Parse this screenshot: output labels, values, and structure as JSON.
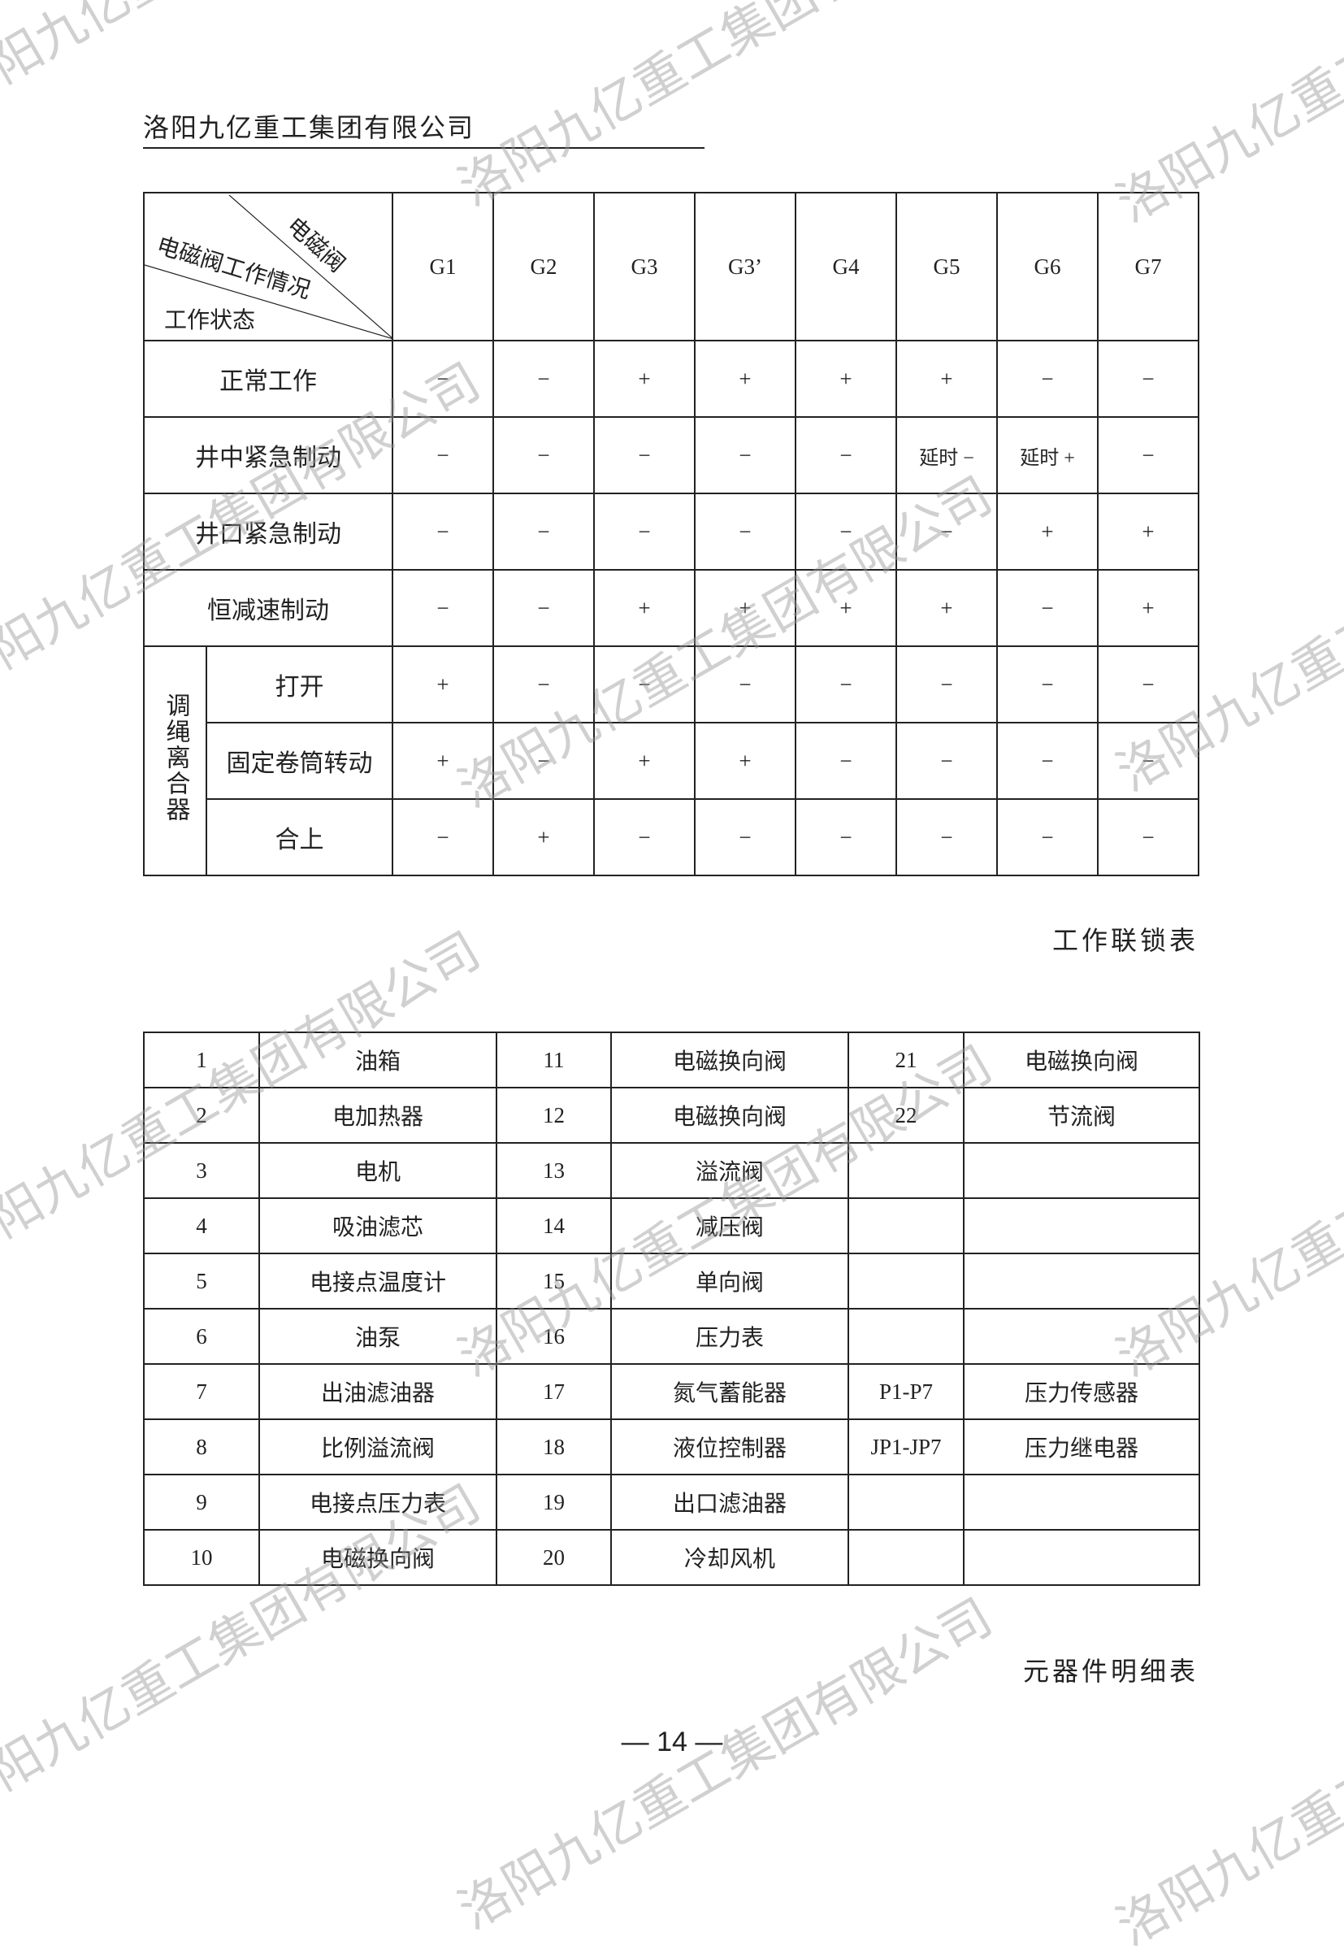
{
  "header": {
    "company": "洛阳九亿重工集团有限公司"
  },
  "watermark": "洛阳九亿重工集团有限公司",
  "interlock_table": {
    "corner": {
      "top": "电磁阀",
      "middle": "电磁阀工作情况",
      "bottom": "工作状态"
    },
    "columns": [
      "G1",
      "G2",
      "G3",
      "G3’",
      "G4",
      "G5",
      "G6",
      "G7"
    ],
    "rows": [
      {
        "label": "正常工作",
        "values": [
          "−",
          "−",
          "+",
          "+",
          "+",
          "+",
          "−",
          "−"
        ]
      },
      {
        "label": "井中紧急制动",
        "values": [
          "−",
          "−",
          "−",
          "−",
          "−",
          "延时 −",
          "延时 +",
          "−"
        ]
      },
      {
        "label": "井口紧急制动",
        "values": [
          "−",
          "−",
          "−",
          "−",
          "−",
          "−",
          "+",
          "+"
        ]
      },
      {
        "label": "恒减速制动",
        "values": [
          "−",
          "−",
          "+",
          "+",
          "+",
          "+",
          "−",
          "+"
        ]
      }
    ],
    "group_label": "调绳离合器",
    "group_rows": [
      {
        "label": "打开",
        "values": [
          "+",
          "−",
          "−",
          "−",
          "−",
          "−",
          "−",
          "−"
        ]
      },
      {
        "label": "固定卷筒转动",
        "values": [
          "+",
          "−",
          "+",
          "+",
          "−",
          "−",
          "−",
          "−"
        ]
      },
      {
        "label": "合上",
        "values": [
          "−",
          "+",
          "−",
          "−",
          "−",
          "−",
          "−",
          "−"
        ]
      }
    ],
    "caption": "工作联锁表"
  },
  "parts_table": {
    "rows": [
      [
        "1",
        "油箱",
        "11",
        "电磁换向阀",
        "21",
        "电磁换向阀"
      ],
      [
        "2",
        "电加热器",
        "12",
        "电磁换向阀",
        "22",
        "节流阀"
      ],
      [
        "3",
        "电机",
        "13",
        "溢流阀",
        "",
        ""
      ],
      [
        "4",
        "吸油滤芯",
        "14",
        "减压阀",
        "",
        ""
      ],
      [
        "5",
        "电接点温度计",
        "15",
        "单向阀",
        "",
        ""
      ],
      [
        "6",
        "油泵",
        "16",
        "压力表",
        "",
        ""
      ],
      [
        "7",
        "出油滤油器",
        "17",
        "氮气蓄能器",
        "P1-P7",
        "压力传感器"
      ],
      [
        "8",
        "比例溢流阀",
        "18",
        "液位控制器",
        "JP1-JP7",
        "压力继电器"
      ],
      [
        "9",
        "电接点压力表",
        "19",
        "出口滤油器",
        "",
        ""
      ],
      [
        "10",
        "电磁换向阀",
        "20",
        "冷却风机",
        "",
        ""
      ]
    ],
    "caption": "元器件明细表"
  },
  "page_number": "— 14 —"
}
